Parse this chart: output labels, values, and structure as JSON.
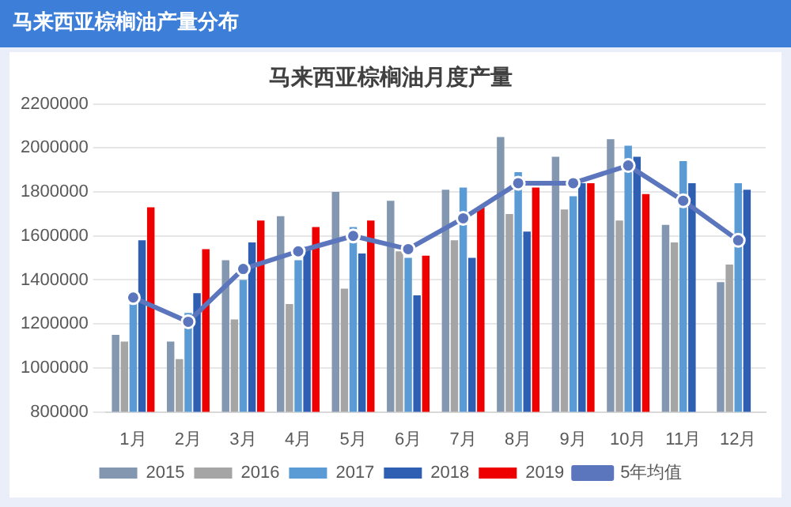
{
  "chart_data": {
    "type": "bar",
    "title": "马来西亚棕榈油产量分布",
    "subtitle": "马来西亚棕榈油月度产量",
    "categories": [
      "1月",
      "2月",
      "3月",
      "4月",
      "5月",
      "6月",
      "7月",
      "8月",
      "9月",
      "10月",
      "11月",
      "12月"
    ],
    "ylim": [
      800000,
      2200000
    ],
    "yticks": [
      800000,
      1000000,
      1200000,
      1400000,
      1600000,
      1800000,
      2000000,
      2200000
    ],
    "grid": "y",
    "legend": "bottom",
    "marker": "circle",
    "line_style": "solid",
    "series": [
      {
        "name": "2015",
        "color": "#8497b0",
        "values": [
          1150000,
          1120000,
          1490000,
          1690000,
          1800000,
          1760000,
          1810000,
          2050000,
          1960000,
          2040000,
          1650000,
          1390000
        ]
      },
      {
        "name": "2016",
        "color": "#a5a5a5",
        "values": [
          1120000,
          1040000,
          1220000,
          1290000,
          1360000,
          1530000,
          1580000,
          1700000,
          1720000,
          1670000,
          1570000,
          1470000
        ]
      },
      {
        "name": "2017",
        "color": "#5b9bd5",
        "values": [
          1290000,
          1250000,
          1400000,
          1490000,
          1640000,
          1500000,
          1820000,
          1890000,
          1780000,
          2010000,
          1940000,
          1840000
        ]
      },
      {
        "name": "2018",
        "color": "#2f5fb3",
        "values": [
          1580000,
          1340000,
          1570000,
          1550000,
          1520000,
          1330000,
          1500000,
          1620000,
          1840000,
          1960000,
          1840000,
          1810000
        ]
      },
      {
        "name": "2019",
        "color": "#ee0000",
        "values": [
          1730000,
          1540000,
          1670000,
          1640000,
          1670000,
          1510000,
          1730000,
          1820000,
          1840000,
          1790000,
          null,
          null
        ]
      },
      {
        "name": "5年均值",
        "type": "line",
        "color": "#5b76bc",
        "values": [
          1320000,
          1210000,
          1450000,
          1530000,
          1600000,
          1540000,
          1680000,
          1840000,
          1840000,
          1920000,
          1760000,
          1580000
        ]
      }
    ]
  }
}
